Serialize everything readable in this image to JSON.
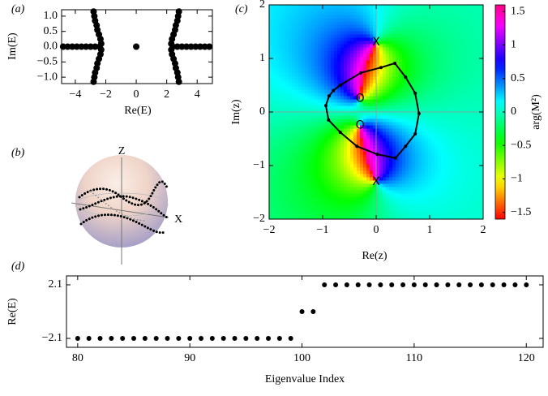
{
  "chart_data": [
    {
      "type": "scatter",
      "panel": "(a)",
      "xlabel": "Re(E)",
      "ylabel": "Im(E)",
      "xlim": [
        -4.9,
        5.0
      ],
      "ylim": [
        -1.21,
        1.21
      ],
      "xticks": [
        {
          "value": -4,
          "label": "−4"
        },
        {
          "value": -2,
          "label": "−2"
        },
        0,
        2,
        4
      ],
      "yticks": [
        {
          "value": -1,
          "label": "−1.0"
        },
        {
          "value": -0.5,
          "label": "−0.5"
        },
        {
          "value": 0,
          "label": "0.0"
        },
        0.5,
        {
          "value": 1,
          "label": "1.0"
        }
      ],
      "color": "#000000",
      "x": [
        -4.8,
        -4.5,
        -4.2,
        -3.9,
        -3.6,
        -3.3,
        -3.0,
        -2.7,
        -2.4,
        -2.3,
        -2.35,
        -2.45,
        -2.55,
        -2.6,
        -2.7,
        -2.75,
        -2.8,
        -2.3,
        -2.35,
        -2.45,
        -2.55,
        -2.6,
        -2.7,
        -2.75,
        -2.8,
        4.8,
        4.5,
        4.2,
        3.9,
        3.6,
        3.3,
        3.0,
        2.7,
        2.4,
        2.3,
        2.35,
        2.45,
        2.55,
        2.6,
        2.7,
        2.75,
        2.8,
        2.3,
        2.35,
        2.45,
        2.55,
        2.6,
        2.7,
        2.75,
        2.8,
        0
      ],
      "values": [
        0,
        0,
        0,
        0,
        0,
        0,
        0,
        0,
        0,
        0.1,
        0.25,
        0.4,
        0.55,
        0.7,
        0.85,
        1.0,
        1.15,
        -0.1,
        -0.25,
        -0.4,
        -0.55,
        -0.7,
        -0.85,
        -1.0,
        -1.15,
        0,
        0,
        0,
        0,
        0,
        0,
        0,
        0,
        0,
        0.1,
        0.25,
        0.4,
        0.55,
        0.7,
        0.85,
        1.0,
        1.15,
        -0.1,
        -0.25,
        -0.4,
        -0.55,
        -0.7,
        -0.85,
        -1.0,
        -1.15,
        0
      ]
    },
    {
      "type": "sphere",
      "panel": "(b)",
      "axis_labels": [
        "Z",
        "X"
      ]
    },
    {
      "type": "phase",
      "panel": "(c)",
      "xlabel": "Re(z)",
      "ylabel": "Im(z)",
      "colorbar_label": "arg(M²)",
      "xlim": [
        -2,
        2
      ],
      "ylim": [
        -2,
        2
      ],
      "xticks": [
        {
          "value": -2,
          "label": "−2"
        },
        {
          "value": -1,
          "label": "−1"
        },
        0,
        1,
        2
      ],
      "yticks": [
        {
          "value": -2,
          "label": "−2"
        },
        {
          "value": -1,
          "label": "−1"
        },
        0,
        1,
        2
      ],
      "clim": [
        -1.6,
        1.6
      ],
      "cticks": [
        {
          "value": -1.5,
          "label": "−1.5"
        },
        {
          "value": -1,
          "label": "−1"
        },
        {
          "value": -0.5,
          "label": "−0.5"
        },
        0,
        0.5,
        1,
        1.5
      ],
      "markers": [
        {
          "label": "X",
          "x": 0,
          "y": 1.3
        },
        {
          "label": "X",
          "x": 0,
          "y": -1.3
        },
        {
          "label": "O",
          "x": -0.3,
          "y": 0.25
        },
        {
          "label": "O",
          "x": -0.3,
          "y": -0.25
        }
      ],
      "color": "#000000",
      "x": [
        -0.94,
        -0.88,
        -0.8,
        -0.67,
        -0.29,
        0.09,
        0.35,
        0.55,
        0.73,
        0.8,
        0.73,
        0.55,
        0.36,
        0.02,
        -0.36,
        -0.67,
        -0.89
      ],
      "values": [
        0.12,
        0.3,
        0.4,
        0.5,
        0.73,
        0.83,
        0.91,
        0.65,
        0.35,
        -0.03,
        -0.41,
        -0.64,
        -0.86,
        -0.79,
        -0.64,
        -0.38,
        -0.15
      ]
    },
    {
      "type": "scatter",
      "panel": "(d)",
      "xlabel": "Eigenvalue Index",
      "ylabel": "Re(E)",
      "xlim": [
        79,
        121.5
      ],
      "ylim": [
        -2.8,
        2.8
      ],
      "xticks": [
        80,
        90,
        100,
        110,
        120
      ],
      "yticks": [
        {
          "value": -2.1,
          "label": "−2.1"
        },
        2.1
      ],
      "color": "#000000",
      "x": [
        80,
        81,
        82,
        83,
        84,
        85,
        86,
        87,
        88,
        89,
        90,
        91,
        92,
        93,
        94,
        95,
        96,
        97,
        98,
        99,
        100,
        101,
        102,
        103,
        104,
        105,
        106,
        107,
        108,
        109,
        110,
        111,
        112,
        113,
        114,
        115,
        116,
        117,
        118,
        119,
        120
      ],
      "values": [
        -2.1,
        -2.1,
        -2.1,
        -2.1,
        -2.1,
        -2.1,
        -2.1,
        -2.1,
        -2.1,
        -2.1,
        -2.1,
        -2.1,
        -2.1,
        -2.1,
        -2.1,
        -2.1,
        -2.1,
        -2.1,
        -2.1,
        -2.1,
        0,
        0,
        2.1,
        2.1,
        2.1,
        2.1,
        2.1,
        2.1,
        2.1,
        2.1,
        2.1,
        2.1,
        2.1,
        2.1,
        2.1,
        2.1,
        2.1,
        2.1,
        2.1,
        2.1,
        2.1
      ]
    }
  ]
}
